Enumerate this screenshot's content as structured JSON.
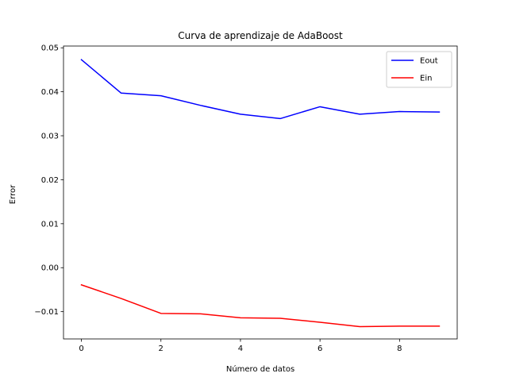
{
  "chart_data": {
    "type": "line",
    "title": "Curva de aprendizaje de AdaBoost",
    "xlabel": "Número de datos",
    "ylabel": "Error",
    "xlim": [
      -0.45,
      9.45
    ],
    "ylim": [
      -0.0162,
      0.0504
    ],
    "xticks": [
      0,
      2,
      4,
      6,
      8
    ],
    "yticks": [
      -0.01,
      0.0,
      0.01,
      0.02,
      0.03,
      0.04,
      0.05
    ],
    "ytick_labels": [
      "−0.01",
      "0.00",
      "0.01",
      "0.02",
      "0.03",
      "0.04",
      "0.05"
    ],
    "xtick_labels": [
      "0",
      "2",
      "4",
      "6",
      "8"
    ],
    "grid": false,
    "legend_position": "top-right",
    "x": [
      0,
      1,
      2,
      3,
      4,
      5,
      6,
      7,
      8,
      9
    ],
    "series": [
      {
        "name": "Eout",
        "color": "#0000ff",
        "values": [
          0.0473,
          0.0397,
          0.0391,
          0.0369,
          0.0349,
          0.0339,
          0.0366,
          0.0349,
          0.0355,
          0.0354
        ]
      },
      {
        "name": "Ein",
        "color": "#ff0000",
        "values": [
          -0.0039,
          -0.007,
          -0.0104,
          -0.0105,
          -0.0114,
          -0.0115,
          -0.0124,
          -0.0134,
          -0.0133,
          -0.0133
        ]
      }
    ]
  }
}
